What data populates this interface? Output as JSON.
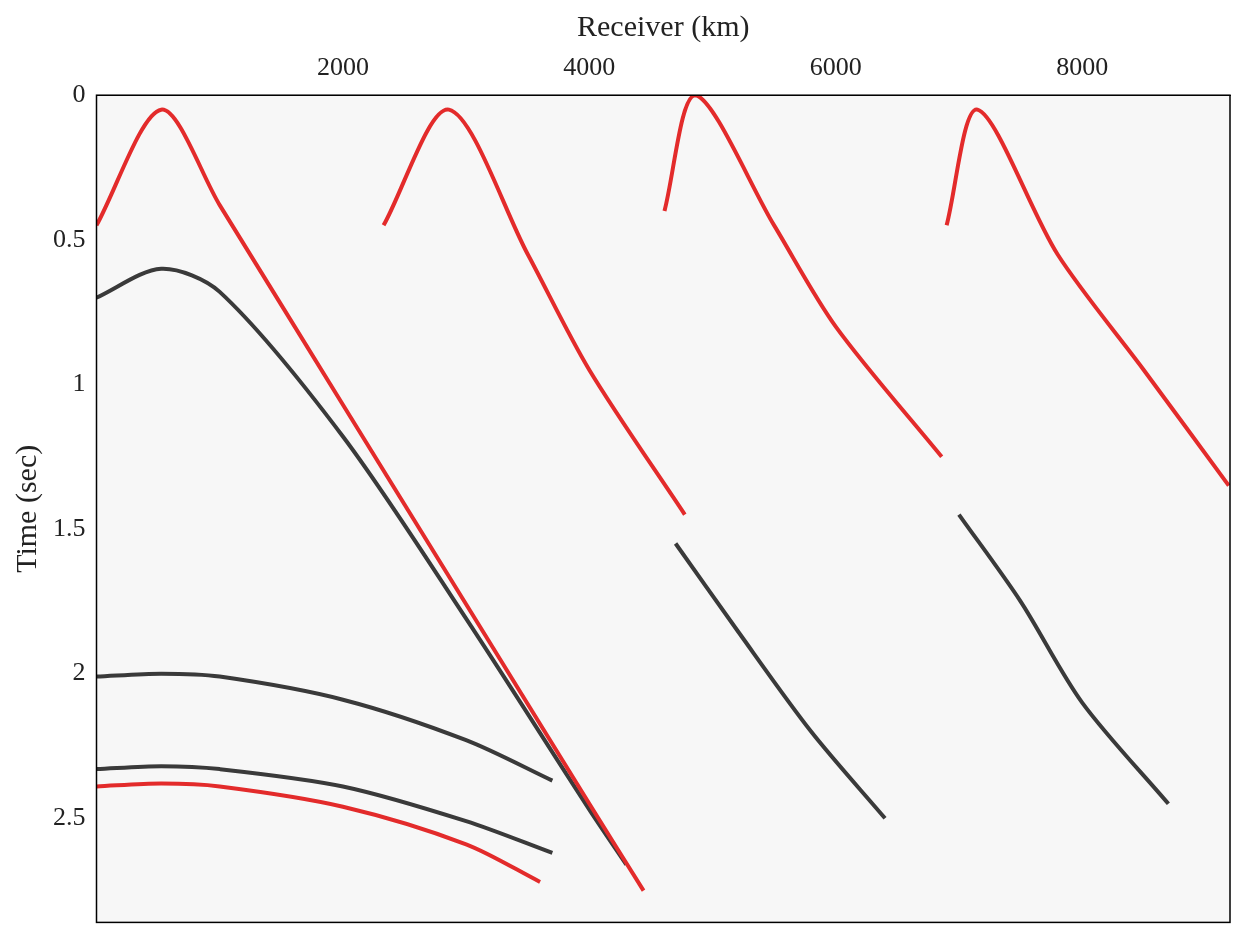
{
  "chart_data": {
    "type": "line",
    "x_label": "Receiver (km)",
    "y_label": "Time (sec)",
    "xlim": [
      0,
      9200
    ],
    "xticks": [
      2000,
      4000,
      6000,
      8000
    ],
    "ylim": [
      0,
      2.86
    ],
    "yticks": [
      0,
      0.5,
      1,
      1.5,
      2,
      2.5
    ],
    "grid": false,
    "series": [
      {
        "color": "#e32b2b",
        "x": [
          0,
          525,
          1000,
          2000,
          3000,
          4000,
          4440
        ],
        "values": [
          0.45,
          0.05,
          0.38,
          1.07,
          1.76,
          2.45,
          2.75
        ]
      },
      {
        "color": "#3a3a3a",
        "x": [
          0,
          525,
          1000,
          2000,
          3000,
          4000,
          4300
        ],
        "values": [
          0.7,
          0.6,
          0.68,
          1.18,
          1.81,
          2.47,
          2.66
        ]
      },
      {
        "color": "#3a3a3a",
        "x": [
          0,
          525,
          1000,
          2000,
          3000,
          3700
        ],
        "values": [
          2.01,
          2.0,
          2.01,
          2.09,
          2.23,
          2.37
        ]
      },
      {
        "color": "#3a3a3a",
        "x": [
          0,
          525,
          1000,
          2000,
          3000,
          3700
        ],
        "values": [
          2.33,
          2.32,
          2.33,
          2.39,
          2.51,
          2.62
        ]
      },
      {
        "color": "#e32b2b",
        "x": [
          0,
          525,
          1000,
          2000,
          3000,
          3600
        ],
        "values": [
          2.39,
          2.38,
          2.39,
          2.46,
          2.59,
          2.72
        ]
      },
      {
        "color": "#e32b2b",
        "x": [
          2330,
          2860,
          3500,
          4000,
          4775
        ],
        "values": [
          0.45,
          0.05,
          0.55,
          0.95,
          1.45
        ]
      },
      {
        "color": "#e32b2b",
        "x": [
          4610,
          4860,
          5500,
          6000,
          6860
        ],
        "values": [
          0.4,
          0.0,
          0.45,
          0.8,
          1.25
        ]
      },
      {
        "color": "#e32b2b",
        "x": [
          6900,
          7150,
          7800,
          8500,
          9190
        ],
        "values": [
          0.45,
          0.05,
          0.55,
          0.95,
          1.35
        ]
      },
      {
        "color": "#3a3a3a",
        "x": [
          4700,
          5200,
          5800,
          6400
        ],
        "values": [
          1.55,
          1.85,
          2.2,
          2.5
        ]
      },
      {
        "color": "#3a3a3a",
        "x": [
          7000,
          7500,
          8000,
          8700
        ],
        "values": [
          1.45,
          1.75,
          2.1,
          2.45
        ]
      }
    ]
  }
}
